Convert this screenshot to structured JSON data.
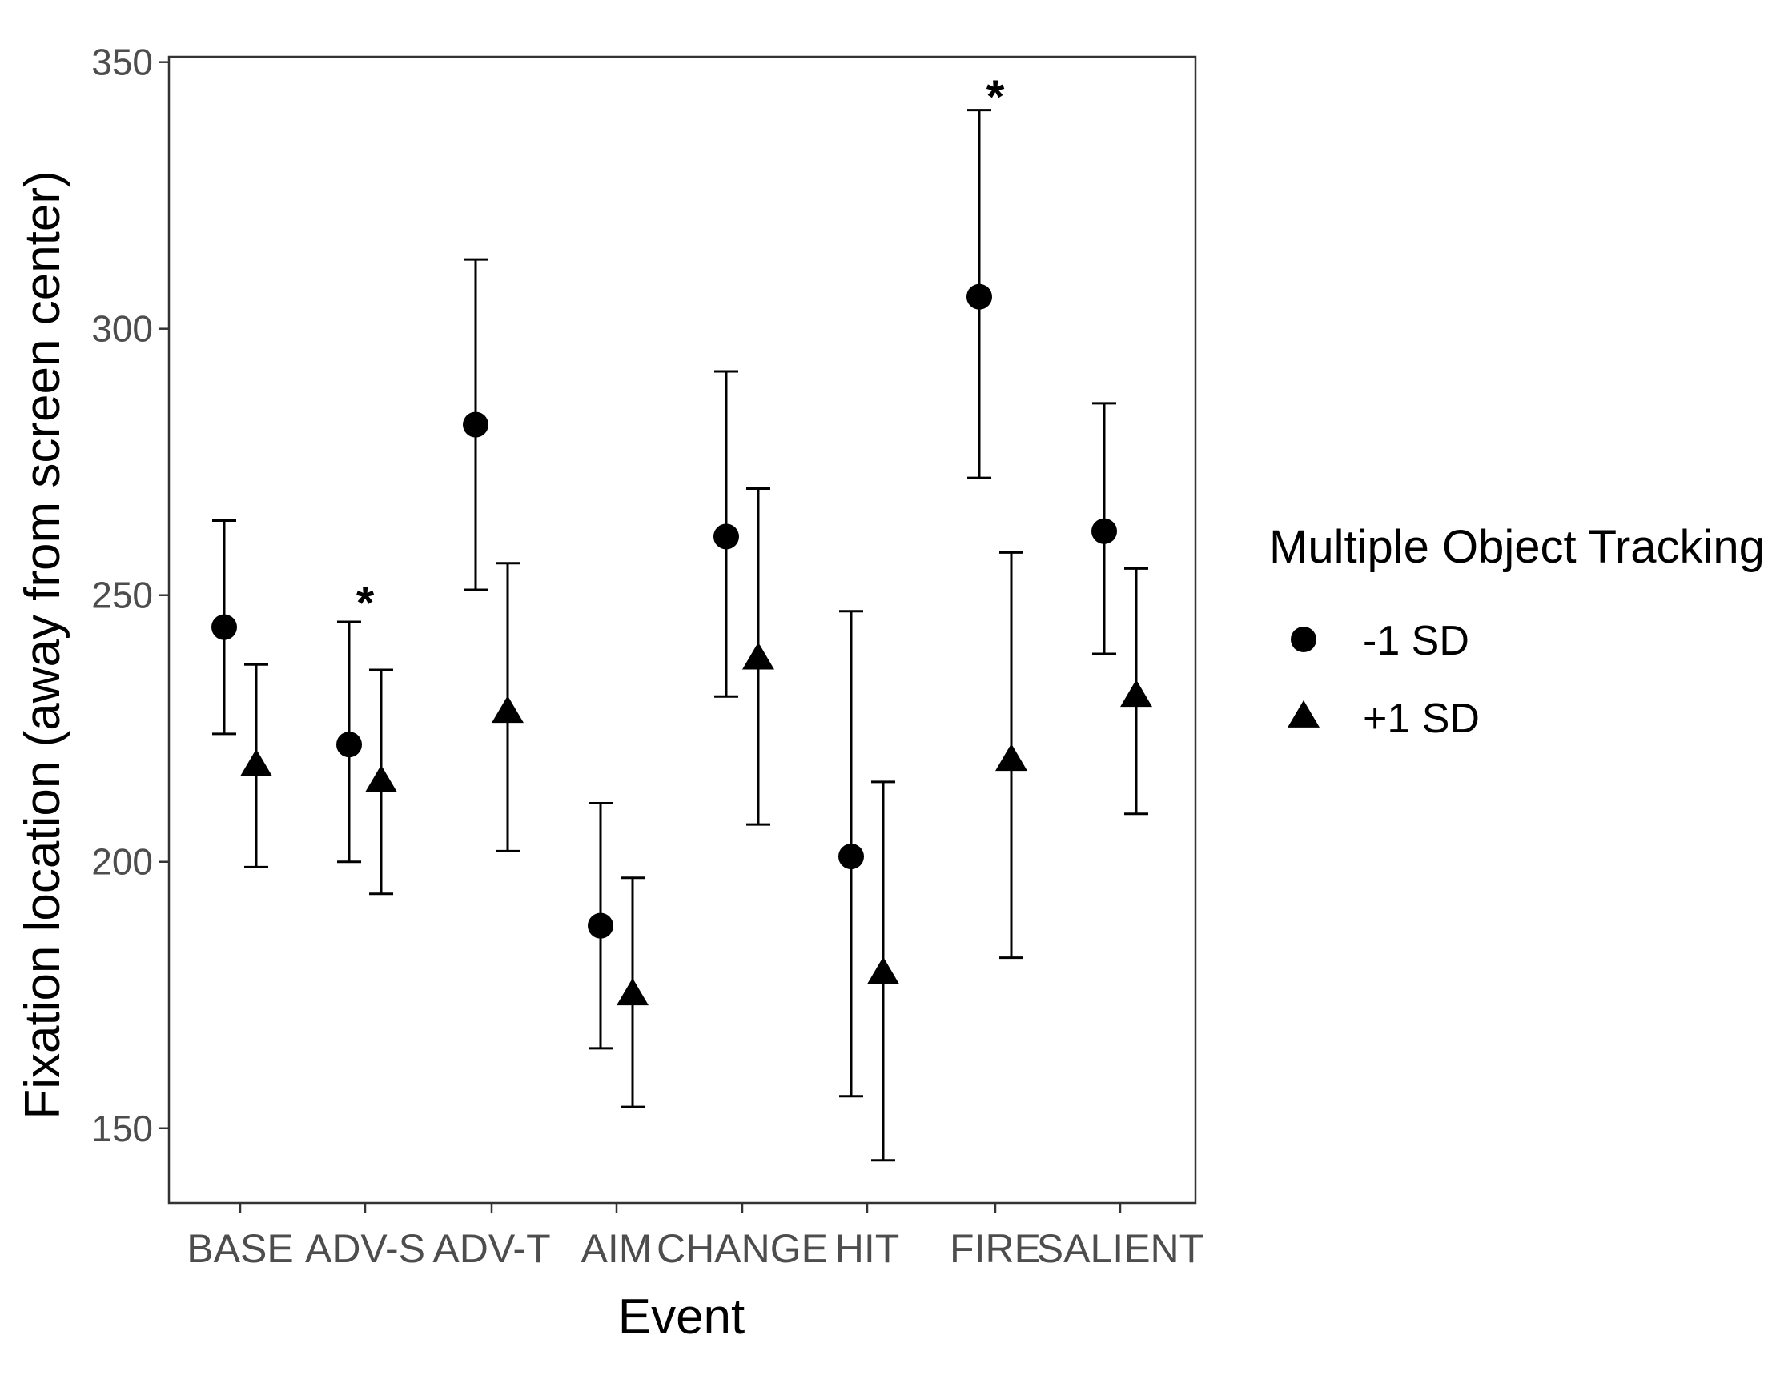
{
  "chart_data": {
    "type": "scatter",
    "title": "",
    "xlabel": "Event",
    "ylabel": "Fixation location (away from screen center)",
    "categories": [
      "BASE",
      "ADV-S",
      "ADV-T",
      "AIM",
      "CHANGE",
      "HIT",
      "FIRE",
      "SALIENT"
    ],
    "ylim": [
      136,
      351
    ],
    "yticks": [
      150,
      200,
      250,
      300,
      350
    ],
    "grid": false,
    "legend": {
      "title": "Multiple Object Tracking",
      "position": "right"
    },
    "series": [
      {
        "name": "-1 SD",
        "marker": "circle",
        "values": [
          244,
          222,
          282,
          188,
          261,
          201,
          306,
          262
        ],
        "lower": [
          224,
          200,
          251,
          165,
          231,
          156,
          272,
          239
        ],
        "upper": [
          264,
          245,
          313,
          211,
          292,
          247,
          341,
          286
        ]
      },
      {
        "name": "+1 SD",
        "marker": "triangle",
        "values": [
          218,
          215,
          228,
          175,
          238,
          179,
          219,
          231
        ],
        "lower": [
          199,
          194,
          202,
          154,
          207,
          144,
          182,
          209
        ],
        "upper": [
          237,
          236,
          256,
          197,
          270,
          215,
          258,
          255
        ]
      }
    ],
    "annotations": [
      {
        "text": "*",
        "category": "ADV-S",
        "y": 250
      },
      {
        "text": "*",
        "category": "FIRE",
        "y": 345
      }
    ]
  }
}
